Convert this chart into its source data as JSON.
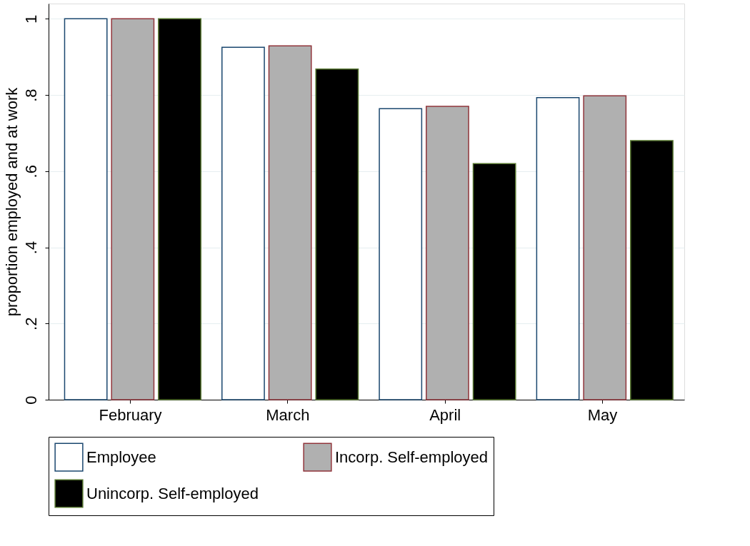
{
  "chart_data": {
    "type": "bar",
    "ylabel": "proportion employed and at work",
    "categories": [
      "February",
      "March",
      "April",
      "May"
    ],
    "series": [
      {
        "name": "Employee",
        "color": "#ffffff",
        "values": [
          1,
          0.925,
          0.764,
          0.793
        ]
      },
      {
        "name": "Incorp. Self-employed",
        "color": "#b0b0b0",
        "values": [
          1,
          0.929,
          0.77,
          0.798
        ]
      },
      {
        "name": "Unincorp. Self-employed",
        "color": "#000000",
        "values": [
          1,
          0.868,
          0.62,
          0.68
        ]
      }
    ],
    "ylim": [
      0,
      1.04
    ],
    "yticks": [
      {
        "value": 0,
        "label": "0"
      },
      {
        "value": 0.2,
        "label": ".2"
      },
      {
        "value": 0.4,
        "label": ".4"
      },
      {
        "value": 0.6,
        "label": ".6"
      },
      {
        "value": 0.8,
        "label": ".8"
      },
      {
        "value": 1,
        "label": "1"
      }
    ],
    "grid": "y",
    "legend": "bottom"
  }
}
